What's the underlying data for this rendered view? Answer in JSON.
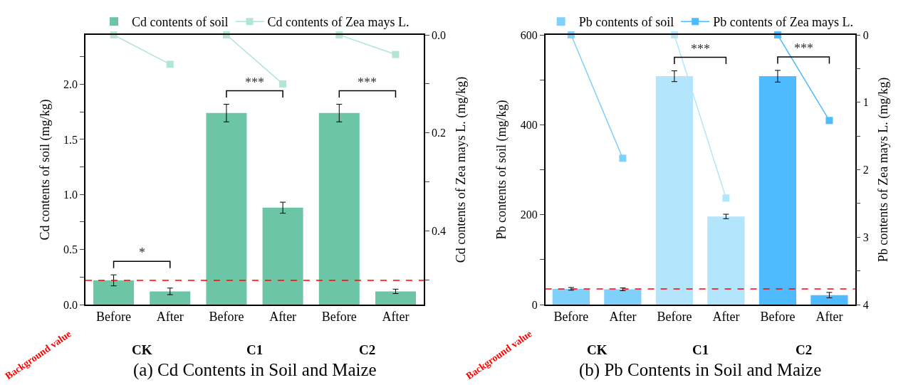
{
  "chart_data": [
    {
      "type": "bar",
      "title": "(a) Cd Contents in Soil and Maize",
      "ylabel": "Cd contents of soil (mg/kg)",
      "y2label": "Cd contents of Zea mays L. (mg/kg)",
      "categories": [
        "Before",
        "After",
        "Before",
        "After",
        "Before",
        "After"
      ],
      "series": [
        {
          "name": "Cd contents of soil",
          "color": "#6cc5a5",
          "values": [
            0.22,
            0.12,
            1.74,
            0.88,
            1.74,
            0.12
          ],
          "errors": [
            0.05,
            0.03,
            0.08,
            0.05,
            0.08,
            0.02
          ]
        },
        {
          "name": "Cd contents of Zea mays L.",
          "type": "line",
          "axis": "y2",
          "color": "#b2e5d3",
          "values": [
            0,
            0.06,
            null,
            null,
            null,
            null
          ]
        },
        {
          "type": "line",
          "axis": "y2",
          "color": "#b2e5d3",
          "values": [
            null,
            null,
            0,
            0.1,
            null,
            null
          ]
        },
        {
          "type": "line",
          "axis": "y2",
          "color": "#b2e5d3",
          "values": [
            null,
            null,
            null,
            null,
            0,
            0.04
          ]
        }
      ],
      "ylim": [
        0,
        2.45
      ],
      "yticks": [
        {
          "value": 0,
          "label": "0.0"
        },
        {
          "value": 0.25,
          "label": null
        },
        {
          "value": 0.5,
          "label": "0.5"
        },
        {
          "value": 0.75,
          "label": null
        },
        {
          "value": 1,
          "label": "1.0"
        },
        {
          "value": 1.25,
          "label": null
        },
        {
          "value": 1.5,
          "label": "1.5"
        },
        {
          "value": 1.75,
          "label": null
        },
        {
          "value": 2,
          "label": "2.0"
        },
        {
          "value": 2.25,
          "label": null
        }
      ],
      "y2lim": [
        0.55,
        0
      ],
      "y2ticks": [
        {
          "value": 0,
          "label": "0.0"
        },
        {
          "value": 0.1,
          "label": null
        },
        {
          "value": 0.2,
          "label": "0.2"
        },
        {
          "value": 0.3,
          "label": null
        },
        {
          "value": 0.4,
          "label": "0.4"
        },
        {
          "value": 0.5,
          "label": null
        }
      ],
      "ref_lines": [
        {
          "axis": "y",
          "value": 0.22,
          "label": "Background value",
          "color": "#ff0000",
          "line_style": "dashed"
        }
      ],
      "annotations": [
        "CK",
        "C1",
        "C2",
        "*",
        "***",
        "***"
      ],
      "marker": "square",
      "legend": "top"
    },
    {
      "type": "bar",
      "title": "(b) Pb Contents in Soil and Maize",
      "ylabel": "Pb contents of soil (mg/kg)",
      "y2label": "Pb contents of Zea mays L. (mg/kg)",
      "categories": [
        "Before",
        "After",
        "Before",
        "After",
        "Before",
        "After"
      ],
      "series": [
        {
          "name": "Pb contents of soil",
          "colors": [
            "#80d0fc",
            "#80d0fc",
            "#b3e5fc",
            "#b3e5fc",
            "#4dbbfd",
            "#4dbbfd"
          ],
          "values": [
            35,
            34,
            508,
            196,
            508,
            21
          ],
          "errors": [
            3,
            3,
            12,
            5,
            13,
            6
          ]
        },
        {
          "name": "Pb contents of Zea mays L.",
          "type": "line",
          "axis": "y2",
          "color": "#4dbbfd",
          "values": [
            null,
            null,
            null,
            null,
            0,
            1.27
          ]
        },
        {
          "type": "line",
          "axis": "y2",
          "color": "#80d0fc",
          "values": [
            0,
            1.83,
            null,
            null,
            null,
            null
          ]
        },
        {
          "type": "line",
          "axis": "y2",
          "color": "#b3e5fc",
          "values": [
            null,
            null,
            0,
            2.42,
            null,
            null
          ]
        }
      ],
      "ylim": [
        0,
        600
      ],
      "yticks": [
        0,
        {
          "value": 100,
          "label": null
        },
        200,
        {
          "value": 300,
          "label": null
        },
        400,
        {
          "value": 500,
          "label": null
        },
        600
      ],
      "y2lim": [
        4,
        0
      ],
      "y2ticks": [
        0,
        {
          "value": 0.5,
          "label": null
        },
        1,
        {
          "value": 1.5,
          "label": null
        },
        2,
        {
          "value": 2.5,
          "label": null
        },
        3,
        {
          "value": 3.5,
          "label": null
        },
        4
      ],
      "ref_lines": [
        {
          "axis": "y",
          "value": 35,
          "label": "Background value",
          "color": "#ff0000",
          "line_style": "dashed"
        }
      ],
      "annotations": [
        "CK",
        "C1",
        "C2",
        "***",
        "***"
      ],
      "marker": "square",
      "legend": "top"
    }
  ]
}
